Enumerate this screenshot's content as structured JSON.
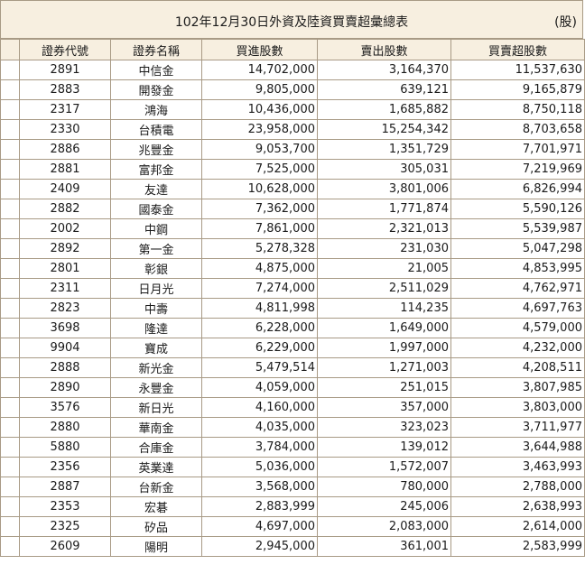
{
  "header": {
    "title": "102年12月30日外資及陸資買賣超彙總表",
    "unit": "(股)"
  },
  "columns": [
    "證券代號",
    "證券名稱",
    "買進股數",
    "賣出股數",
    "買賣超股數"
  ],
  "rows": [
    {
      "code": "2891",
      "name": "中信金",
      "buy": "14,702,000",
      "sell": "3,164,370",
      "net": "11,537,630"
    },
    {
      "code": "2883",
      "name": "開發金",
      "buy": "9,805,000",
      "sell": "639,121",
      "net": "9,165,879"
    },
    {
      "code": "2317",
      "name": "鴻海",
      "buy": "10,436,000",
      "sell": "1,685,882",
      "net": "8,750,118"
    },
    {
      "code": "2330",
      "name": "台積電",
      "buy": "23,958,000",
      "sell": "15,254,342",
      "net": "8,703,658"
    },
    {
      "code": "2886",
      "name": "兆豐金",
      "buy": "9,053,700",
      "sell": "1,351,729",
      "net": "7,701,971"
    },
    {
      "code": "2881",
      "name": "富邦金",
      "buy": "7,525,000",
      "sell": "305,031",
      "net": "7,219,969"
    },
    {
      "code": "2409",
      "name": "友達",
      "buy": "10,628,000",
      "sell": "3,801,006",
      "net": "6,826,994"
    },
    {
      "code": "2882",
      "name": "國泰金",
      "buy": "7,362,000",
      "sell": "1,771,874",
      "net": "5,590,126"
    },
    {
      "code": "2002",
      "name": "中鋼",
      "buy": "7,861,000",
      "sell": "2,321,013",
      "net": "5,539,987"
    },
    {
      "code": "2892",
      "name": "第一金",
      "buy": "5,278,328",
      "sell": "231,030",
      "net": "5,047,298"
    },
    {
      "code": "2801",
      "name": "彰銀",
      "buy": "4,875,000",
      "sell": "21,005",
      "net": "4,853,995"
    },
    {
      "code": "2311",
      "name": "日月光",
      "buy": "7,274,000",
      "sell": "2,511,029",
      "net": "4,762,971"
    },
    {
      "code": "2823",
      "name": "中壽",
      "buy": "4,811,998",
      "sell": "114,235",
      "net": "4,697,763"
    },
    {
      "code": "3698",
      "name": "隆達",
      "buy": "6,228,000",
      "sell": "1,649,000",
      "net": "4,579,000"
    },
    {
      "code": "9904",
      "name": "寶成",
      "buy": "6,229,000",
      "sell": "1,997,000",
      "net": "4,232,000"
    },
    {
      "code": "2888",
      "name": "新光金",
      "buy": "5,479,514",
      "sell": "1,271,003",
      "net": "4,208,511"
    },
    {
      "code": "2890",
      "name": "永豐金",
      "buy": "4,059,000",
      "sell": "251,015",
      "net": "3,807,985"
    },
    {
      "code": "3576",
      "name": "新日光",
      "buy": "4,160,000",
      "sell": "357,000",
      "net": "3,803,000"
    },
    {
      "code": "2880",
      "name": "華南金",
      "buy": "4,035,000",
      "sell": "323,023",
      "net": "3,711,977"
    },
    {
      "code": "5880",
      "name": "合庫金",
      "buy": "3,784,000",
      "sell": "139,012",
      "net": "3,644,988"
    },
    {
      "code": "2356",
      "name": "英業達",
      "buy": "5,036,000",
      "sell": "1,572,007",
      "net": "3,463,993"
    },
    {
      "code": "2887",
      "name": "台新金",
      "buy": "3,568,000",
      "sell": "780,000",
      "net": "2,788,000"
    },
    {
      "code": "2353",
      "name": "宏碁",
      "buy": "2,883,999",
      "sell": "245,006",
      "net": "2,638,993"
    },
    {
      "code": "2325",
      "name": "矽品",
      "buy": "4,697,000",
      "sell": "2,083,000",
      "net": "2,614,000"
    },
    {
      "code": "2609",
      "name": "陽明",
      "buy": "2,945,000",
      "sell": "361,001",
      "net": "2,583,999"
    }
  ]
}
